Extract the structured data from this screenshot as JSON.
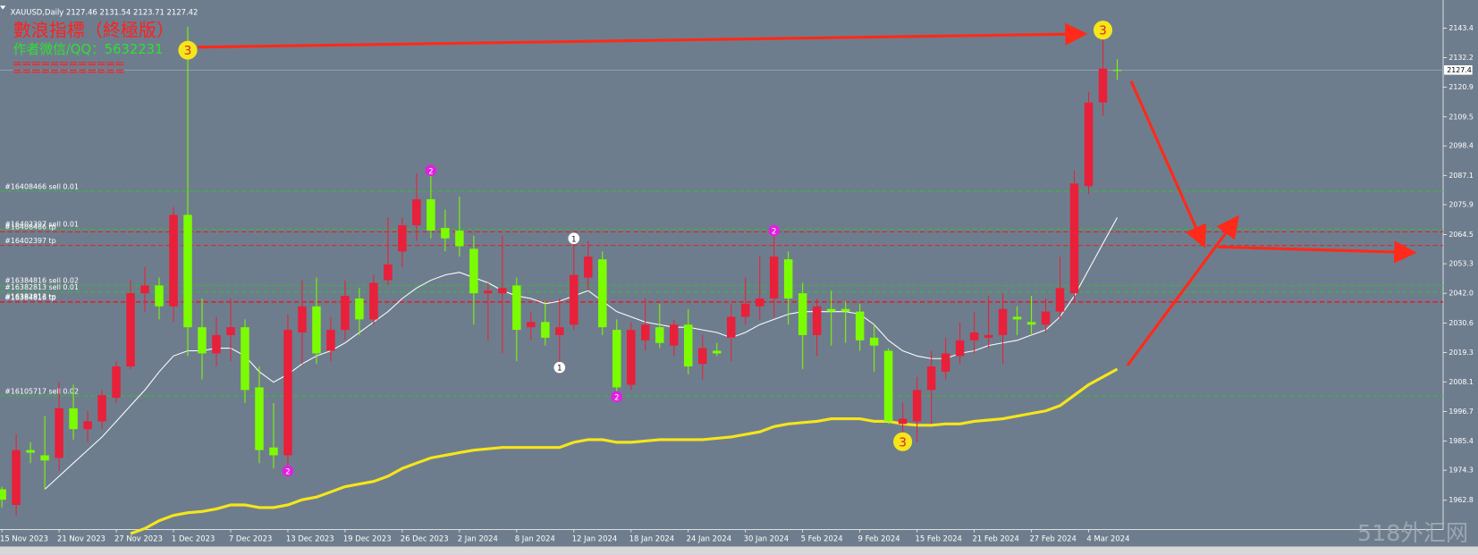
{
  "chart_data": {
    "type": "candlestick",
    "symbol": "XAUUSD,Daily",
    "indicator_title": "數浪指標（終極版）",
    "author_line": "作者微信/QQ：5632231",
    "separator": "============",
    "watermark": "518外汇网",
    "current_price_label": "2127.4",
    "up_color": "#e8203a",
    "down_color": "#7cfc00",
    "categories": [
      "15 Nov 2023",
      null,
      null,
      null,
      "21 Nov 2023",
      null,
      null,
      null,
      "27 Nov 2023",
      null,
      null,
      null,
      "1 Dec 2023",
      null,
      null,
      null,
      "7 Dec 2023",
      null,
      null,
      null,
      "13 Dec 2023",
      null,
      null,
      null,
      "19 Dec 2023",
      null,
      null,
      null,
      "26 Dec 2023",
      null,
      null,
      null,
      "2 Jan 2024",
      null,
      null,
      null,
      "8 Jan 2024",
      null,
      null,
      null,
      "12 Jan 2024",
      null,
      null,
      null,
      "18 Jan 2024",
      null,
      null,
      null,
      "24 Jan 2024",
      null,
      null,
      null,
      "30 Jan 2024",
      null,
      null,
      null,
      "5 Feb 2024",
      null,
      null,
      null,
      "9 Feb 2024",
      null,
      null,
      null,
      "15 Feb 2024",
      null,
      null,
      null,
      "21 Feb 2024",
      null,
      null,
      null,
      "27 Feb 2024",
      null,
      null,
      null,
      "4 Mar 2024",
      null,
      null
    ],
    "open": [
      1967,
      1961,
      1982,
      1980,
      1979,
      1998,
      1990,
      1993,
      2002,
      2014,
      2042,
      2045,
      2037,
      2072,
      2029,
      2019,
      2026,
      2029,
      2006,
      1983,
      1980,
      2027,
      2037,
      2020,
      2028,
      2040,
      2032,
      2047,
      2058,
      2068,
      2078,
      2067,
      2066,
      2059,
      2042,
      2042,
      2045,
      2029,
      2031,
      2026,
      2030,
      2048,
      2055,
      2028,
      2007,
      2024,
      2029,
      2022,
      2030,
      2015,
      2020,
      2025,
      2033,
      2037,
      2040,
      2055,
      2042,
      2026,
      2036,
      2036,
      2035,
      2025,
      2020,
      1992,
      1993,
      2005,
      2012,
      2018,
      2024,
      2025,
      2026,
      2033,
      2031,
      2030,
      2035,
      2042,
      2083,
      2115,
      2127.46
    ],
    "high": [
      1968,
      1988,
      1985,
      1995,
      2008,
      2007,
      1997,
      2005,
      2016,
      2047,
      2052,
      2048,
      2075,
      2144,
      2040,
      2033,
      2040,
      2032,
      2014,
      2000,
      2034,
      2047,
      2048,
      2033,
      2047,
      2044,
      2049,
      2071,
      2071,
      2088,
      2088,
      2074,
      2079,
      2064,
      2046,
      2064,
      2048,
      2035,
      2039,
      2040,
      2061,
      2062,
      2058,
      2032,
      2031,
      2040,
      2038,
      2032,
      2036,
      2026,
      2023,
      2038,
      2048,
      2056,
      2065,
      2058,
      2046,
      2040,
      2043,
      2039,
      2038,
      2030,
      2021,
      2000,
      2010,
      2020,
      2025,
      2031,
      2035,
      2041,
      2042,
      2037,
      2041,
      2040,
      2056,
      2089,
      2119,
      2141,
      2131.54
    ],
    "low": [
      1960,
      1957,
      1977,
      1967,
      1974,
      1986,
      1985,
      1990,
      2000,
      2013,
      2035,
      2032,
      2031,
      2018,
      2009,
      2014,
      2016,
      2000,
      1977,
      1975,
      1973,
      2015,
      2015,
      2016,
      2024,
      2026,
      2030,
      2045,
      2052,
      2062,
      2063,
      2058,
      2056,
      2030,
      2024,
      2019,
      2016,
      2024,
      2022,
      2011,
      2028,
      2043,
      2026,
      2002,
      2005,
      2020,
      2021,
      2018,
      2011,
      2009,
      2018,
      2016,
      2030,
      2032,
      2033,
      2030,
      2013,
      2018,
      2022,
      2023,
      2020,
      2012,
      1992,
      1984,
      1985,
      1992,
      2009,
      2015,
      2019,
      2021,
      2015,
      2026,
      2026,
      2027,
      2032,
      2039,
      2080,
      2110,
      2123.71
    ],
    "close": [
      1963,
      1982,
      1981,
      1978,
      1998,
      1990,
      1993,
      2003,
      2014,
      2042,
      2045,
      2037,
      2072,
      2029,
      2019,
      2026,
      2029,
      2005,
      1982,
      1980,
      2028,
      2037,
      2019,
      2028,
      2041,
      2032,
      2046,
      2053,
      2068,
      2078,
      2066,
      2063,
      2060,
      2042,
      2043,
      2044,
      2028,
      2031,
      2025,
      2029,
      2049,
      2056,
      2029,
      2006,
      2028,
      2030,
      2023,
      2030,
      2014,
      2021,
      2019,
      2033,
      2038,
      2040,
      2056,
      2040,
      2026,
      2037,
      2035,
      2035,
      2024,
      2022,
      1993,
      1994,
      2005,
      2014,
      2019,
      2024,
      2027,
      2026,
      2036,
      2032,
      2030,
      2035,
      2044,
      2084,
      2115,
      2128,
      2127.42
    ],
    "moving_averages": [
      {
        "color": "#ffffff",
        "width": 1,
        "values": [
          null,
          null,
          null,
          1967,
          1972,
          1977,
          1982,
          1987,
          1993,
          1999,
          2005,
          2012,
          2018,
          2020,
          2020,
          2021,
          2021,
          2018,
          2012,
          2008,
          2011,
          2015,
          2018,
          2020,
          2023,
          2027,
          2031,
          2035,
          2040,
          2044,
          2047,
          2049,
          2050,
          2048,
          2046,
          2043,
          2041,
          2040,
          2038,
          2039,
          2041,
          2043,
          2039,
          2035,
          2033,
          2031,
          2030,
          2029,
          2029,
          2028,
          2027,
          2025,
          2027,
          2030,
          2032,
          2034,
          2035,
          2035,
          2035,
          2035,
          2034,
          2030,
          2024,
          2020,
          2018,
          2017,
          2017,
          2019,
          2020,
          2022,
          2023,
          2024,
          2026,
          2028,
          2033,
          2041,
          2051,
          2061,
          2071
        ]
      },
      {
        "color": "#f5e61a",
        "width": 3,
        "values": [
          null,
          null,
          null,
          null,
          null,
          null,
          null,
          null,
          null,
          1950,
          1952,
          1955,
          1957,
          1958,
          1958.5,
          1959.5,
          1961,
          1961,
          1960,
          1960,
          1961,
          1963,
          1964,
          1966,
          1968,
          1969,
          1970,
          1972,
          1975,
          1977,
          1979,
          1980,
          1981,
          1982,
          1982.5,
          1983,
          1983,
          1983,
          1983,
          1983,
          1985,
          1986,
          1986,
          1985,
          1985,
          1985.5,
          1986,
          1986,
          1986,
          1986,
          1986.5,
          1987,
          1988,
          1989,
          1991,
          1992,
          1992.5,
          1993,
          1994,
          1994,
          1994,
          1993,
          1993,
          1992,
          1991.5,
          1991.5,
          1992,
          1992,
          1993,
          1993.5,
          1994,
          1995,
          1996,
          1997,
          1999,
          2003,
          2007,
          2010,
          2013
        ]
      }
    ],
    "order_lines": [
      {
        "label": "#16408466 sell 0.01",
        "price": 2081,
        "color": "#2fbf2f"
      },
      {
        "label": "#16402397 sell 0.01",
        "price": 2066.5,
        "color": "#2fbf2f"
      },
      {
        "label": "#16408466 tp",
        "price": 2065.5,
        "color": "#e0202a"
      },
      {
        "label": "#16402397 tp",
        "price": 2060.3,
        "color": "#e0202a"
      },
      {
        "label": "#16384816 sell 0.02",
        "price": 2045,
        "color": "#2fbf2f"
      },
      {
        "label": "#16382813 sell 0.01",
        "price": 2042.5,
        "color": "#2fbf2f"
      },
      {
        "label": "#16382813 tp",
        "price": 2038.8,
        "color": "#e0202a"
      },
      {
        "label": "#16384816 tp",
        "price": 2038.6,
        "color": "#e0202a"
      },
      {
        "label": "#16105717 sell 0.02",
        "price": 2002.7,
        "color": "#2fbf2f"
      }
    ],
    "wave_markers": [
      {
        "text": "3",
        "index": 13,
        "price": 2135,
        "color": "#f5e61a",
        "text_color": "#e0202a"
      },
      {
        "text": "2",
        "index": 20,
        "price": 1974,
        "color": "#e020e0",
        "text_color": "#ffffff"
      },
      {
        "text": "2",
        "index": 30,
        "price": 2089,
        "color": "#e020e0",
        "text_color": "#ffffff"
      },
      {
        "text": "1",
        "index": 39,
        "price": 2013.6,
        "color": "#ffffff",
        "text_color": "#000000"
      },
      {
        "text": "1",
        "index": 40,
        "price": 2063,
        "color": "#ffffff",
        "text_color": "#000000"
      },
      {
        "text": "2",
        "index": 43,
        "price": 2002.4,
        "color": "#e020e0",
        "text_color": "#ffffff"
      },
      {
        "text": "2",
        "index": 54,
        "price": 2066,
        "color": "#e020e0",
        "text_color": "#ffffff"
      },
      {
        "text": "3",
        "index": 63,
        "price": 1985.2,
        "color": "#f5e61a",
        "text_color": "#e0202a"
      },
      {
        "text": "3",
        "index": 77,
        "price": 2142.7,
        "color": "#f5e61a",
        "text_color": "#e0202a"
      }
    ],
    "ylim": [
      1951.6,
      2152.4
    ],
    "yticks": [
      2143.4,
      2132.2,
      2120.9,
      2109.5,
      2098.4,
      2087.1,
      2075.9,
      2064.5,
      2053.3,
      {
        "value": 2042,
        "label": "2042.0"
      },
      2030.6,
      2019.3,
      2008.1,
      1996.7,
      1985.4,
      1974.3,
      1962.8
    ]
  }
}
